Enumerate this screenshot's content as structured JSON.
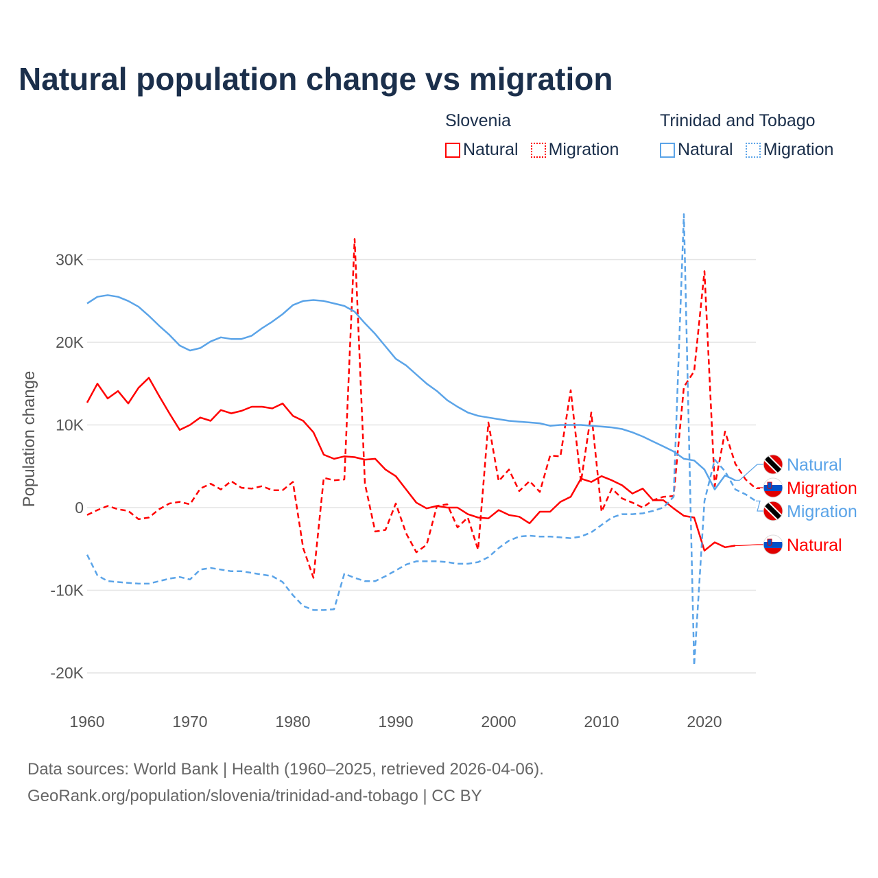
{
  "chart_data": {
    "type": "line",
    "title": "Natural population change vs migration",
    "xlabel": "",
    "ylabel": "Population change",
    "xlim": [
      1960,
      2025
    ],
    "ylim": [
      -22000,
      36000
    ],
    "grid": true,
    "x_ticks": [
      1960,
      1970,
      1980,
      1990,
      2000,
      2010,
      2020
    ],
    "x_tick_labels": [
      "1960",
      "1970",
      "1980",
      "1990",
      "2000",
      "2010",
      "2020"
    ],
    "y_ticks": [
      -20000,
      -10000,
      0,
      10000,
      20000,
      30000
    ],
    "y_tick_labels": [
      "-20K",
      "-10K",
      "0",
      "10K",
      "20K",
      "30K"
    ],
    "legend": {
      "placement": "top-right",
      "groups": [
        {
          "country": "Slovenia",
          "items": [
            "Natural",
            "Migration"
          ]
        },
        {
          "country": "Trinidad and Tobago",
          "items": [
            "Natural",
            "Migration"
          ]
        }
      ]
    },
    "series": [
      {
        "name": "Slovenia Natural",
        "country": "Slovenia",
        "kind": "Natural",
        "color": "#ff0000",
        "dashed": false,
        "start_year": 1960,
        "values": [
          12.7,
          15.0,
          13.2,
          14.1,
          12.6,
          14.5,
          15.7,
          13.5,
          11.4,
          9.4,
          10.0,
          10.9,
          10.5,
          11.8,
          11.4,
          11.7,
          12.2,
          12.2,
          12.0,
          12.6,
          11.1,
          10.5,
          9.1,
          6.4,
          5.9,
          6.2,
          6.1,
          5.8,
          5.9,
          4.6,
          3.8,
          2.2,
          0.6,
          -0.1,
          0.2,
          0.0,
          0.0,
          -0.8,
          -1.2,
          -1.3,
          -0.3,
          -0.9,
          -1.1,
          -1.9,
          -0.5,
          -0.5,
          0.7,
          1.3,
          3.5,
          3.1,
          3.8,
          3.3,
          2.7,
          1.7,
          2.3,
          0.9,
          0.9,
          -0.1,
          -1.0,
          -1.2,
          -5.2,
          -4.2,
          -4.8,
          -4.6
        ]
      },
      {
        "name": "Slovenia Migration",
        "country": "Slovenia",
        "kind": "Migration",
        "color": "#ff0000",
        "dashed": true,
        "start_year": 1960,
        "values": [
          -0.9,
          -0.3,
          0.2,
          -0.2,
          -0.4,
          -1.4,
          -1.2,
          -0.2,
          0.5,
          0.7,
          0.4,
          2.3,
          2.9,
          2.2,
          3.2,
          2.4,
          2.3,
          2.6,
          2.1,
          2.1,
          3.1,
          -4.9,
          -8.5,
          3.6,
          3.3,
          3.4,
          32.5,
          2.9,
          -2.9,
          -2.7,
          0.5,
          -3.1,
          -5.4,
          -4.5,
          0.2,
          0.4,
          -2.4,
          -1.2,
          -5.1,
          10.3,
          3.2,
          4.6,
          2.0,
          3.2,
          1.9,
          6.3,
          6.2,
          14.2,
          3.1,
          11.5,
          -0.5,
          2.3,
          1.1,
          0.6,
          0.0,
          0.9,
          1.3,
          1.4,
          14.6,
          16.5,
          28.6,
          2.6,
          9.2,
          5.3,
          3.4,
          2.3
        ]
      },
      {
        "name": "Trinidad and Tobago Natural",
        "country": "Trinidad and Tobago",
        "kind": "Natural",
        "color": "#5ba4e8",
        "dashed": false,
        "start_year": 1960,
        "values": [
          24.7,
          25.5,
          25.7,
          25.5,
          25.0,
          24.3,
          23.2,
          22.0,
          20.9,
          19.6,
          19.0,
          19.3,
          20.1,
          20.6,
          20.4,
          20.4,
          20.8,
          21.7,
          22.5,
          23.4,
          24.5,
          25.0,
          25.1,
          25.0,
          24.7,
          24.4,
          23.7,
          22.3,
          21.0,
          19.5,
          18.0,
          17.2,
          16.1,
          15.0,
          14.1,
          13.0,
          12.2,
          11.5,
          11.1,
          10.9,
          10.7,
          10.5,
          10.4,
          10.3,
          10.2,
          9.9,
          10.0,
          10.0,
          10.0,
          9.9,
          9.8,
          9.7,
          9.5,
          9.1,
          8.6,
          8.0,
          7.4,
          6.8,
          5.9,
          5.7,
          4.6,
          2.2,
          3.9,
          3.3
        ]
      },
      {
        "name": "Trinidad and Tobago Migration",
        "country": "Trinidad and Tobago",
        "kind": "Migration",
        "color": "#5ba4e8",
        "dashed": true,
        "start_year": 1960,
        "values": [
          -5.7,
          -8.2,
          -8.9,
          -9.0,
          -9.1,
          -9.2,
          -9.2,
          -8.9,
          -8.6,
          -8.4,
          -8.7,
          -7.5,
          -7.3,
          -7.5,
          -7.7,
          -7.7,
          -7.9,
          -8.1,
          -8.3,
          -9.0,
          -10.6,
          -11.9,
          -12.4,
          -12.4,
          -12.3,
          -8.0,
          -8.5,
          -8.9,
          -8.9,
          -8.3,
          -7.6,
          -6.9,
          -6.5,
          -6.5,
          -6.5,
          -6.6,
          -6.8,
          -6.8,
          -6.6,
          -6.0,
          -4.9,
          -4.0,
          -3.5,
          -3.4,
          -3.5,
          -3.5,
          -3.6,
          -3.7,
          -3.5,
          -3.0,
          -2.1,
          -1.2,
          -0.8,
          -0.8,
          -0.7,
          -0.4,
          0.0,
          1.3,
          35.5,
          -19.1,
          0.8,
          5.8,
          4.4,
          2.2,
          1.6,
          0.8
        ]
      }
    ],
    "value_unit": "thousands",
    "end_labels": [
      {
        "series": "Trinidad and Tobago Natural",
        "text": "Natural",
        "flag": "trinidad-and-tobago-flag-icon"
      },
      {
        "series": "Slovenia Migration",
        "text": "Migration",
        "flag": "slovenia-flag-icon"
      },
      {
        "series": "Trinidad and Tobago Migration",
        "text": "Migration",
        "flag": "trinidad-and-tobago-flag-icon"
      },
      {
        "series": "Slovenia Natural",
        "text": "Natural",
        "flag": "slovenia-flag-icon"
      }
    ]
  },
  "legend": {
    "slovenia": {
      "name": "Slovenia",
      "natural": "Natural",
      "migration": "Migration"
    },
    "tt": {
      "name": "Trinidad and Tobago",
      "natural": "Natural",
      "migration": "Migration"
    }
  },
  "footer": {
    "line1": "Data sources: World Bank | Health (1960–2025, retrieved 2026-04-06).",
    "line2": "GeoRank.org/population/slovenia/trinidad-and-tobago | CC BY"
  }
}
